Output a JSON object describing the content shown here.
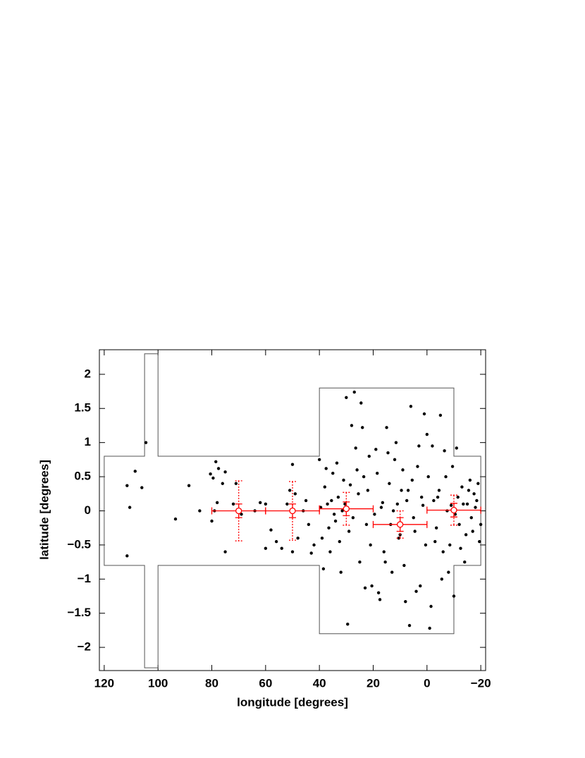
{
  "chart_data": {
    "type": "scatter",
    "xlabel": "longitude [degrees]",
    "ylabel": "latitude [degrees]",
    "xlim": [
      121.8,
      -21.8
    ],
    "ylim": [
      -2.34,
      2.36
    ],
    "xticks": [
      120,
      100,
      80,
      60,
      40,
      20,
      0,
      {
        "value": -20,
        "label": "−20"
      }
    ],
    "yticks": [
      2,
      1.5,
      1,
      0.5,
      0,
      {
        "value": -0.5,
        "label": "−0.5"
      },
      {
        "value": -1,
        "label": "−1"
      },
      {
        "value": -1.5,
        "label": "−1.5"
      },
      {
        "value": -2,
        "label": "−2"
      }
    ],
    "region": {
      "color": "#555555",
      "x": [
        120,
        105,
        105,
        100,
        100,
        40,
        40,
        -10,
        -10,
        -20,
        -20,
        -10,
        -10,
        40,
        40,
        100,
        100,
        105,
        105,
        120
      ],
      "y": [
        0.8,
        0.8,
        2.3,
        2.3,
        0.8,
        0.8,
        1.8,
        1.8,
        0.8,
        0.8,
        -0.8,
        -0.8,
        -1.8,
        -1.8,
        -0.8,
        -0.8,
        -2.3,
        -2.3,
        -0.8,
        -0.8
      ]
    },
    "points": {
      "color": "#000000",
      "x": [
        111.5,
        110.5,
        111.5,
        108.5,
        106,
        104.5,
        93.5,
        88.5,
        84.5,
        80.5,
        78.5,
        77.5,
        79.5,
        76,
        78,
        79,
        75,
        80,
        75,
        71,
        69,
        72,
        62,
        60,
        58,
        56,
        54,
        60,
        64,
        50,
        51,
        49,
        52,
        48,
        50,
        46,
        45,
        44,
        43,
        42,
        40,
        39,
        38,
        37,
        36,
        35,
        34,
        33,
        32,
        31,
        30,
        29,
        28,
        27,
        26,
        25,
        24,
        23,
        22,
        21,
        39.5,
        38.5,
        37.5,
        36.5,
        35.5,
        34.5,
        33.5,
        32.5,
        31.5,
        30.5,
        29.5,
        28.5,
        27.5,
        26.5,
        25.5,
        24.5,
        23.5,
        22.5,
        21.5,
        20.5,
        19,
        18,
        17,
        16,
        15,
        14,
        13,
        12,
        11,
        10,
        9,
        8,
        7,
        6,
        5,
        4,
        3,
        2,
        1,
        0.5,
        19.5,
        18.5,
        17.5,
        16.5,
        15.5,
        14.5,
        13.5,
        12.5,
        11.5,
        10.5,
        9.5,
        8.5,
        7.5,
        6.5,
        5.5,
        4.5,
        3.5,
        2.5,
        1.5,
        0,
        -1,
        -2,
        -3,
        -4,
        -5,
        -6,
        -7,
        -8,
        -9,
        -10,
        -11,
        -12,
        -13,
        -14,
        -15,
        -16,
        -17,
        -18,
        -19,
        -20,
        -0.5,
        -1.5,
        -2.5,
        -3.5,
        -4.5,
        -5.5,
        -6.5,
        -7.5,
        -8.5,
        -9.5,
        -10.5,
        -11.5,
        -12.5,
        -13.5,
        -14.5,
        -15.5,
        -16.5,
        -17.5,
        -18.5,
        -19.5
      ],
      "y": [
        0.37,
        0.05,
        -0.66,
        0.58,
        0.34,
        1.0,
        -0.12,
        0.37,
        0,
        0.54,
        0.72,
        0.62,
        0.48,
        0.4,
        0.12,
        0,
        -0.6,
        -0.15,
        0.57,
        0.4,
        -0.05,
        0.1,
        0.12,
        0.1,
        -0.28,
        -0.45,
        -0.55,
        -0.55,
        0,
        0.68,
        0.3,
        0.25,
        0.1,
        -0.4,
        -0.6,
        0,
        0.15,
        -0.2,
        -0.62,
        -0.5,
        0.75,
        -0.4,
        0.35,
        0.1,
        -0.6,
        0.55,
        -0.15,
        0.2,
        -0.9,
        0.45,
        1.66,
        -0.3,
        1.25,
        1.74,
        0.6,
        -0.75,
        1.22,
        -1.13,
        0.3,
        -0.5,
        0.05,
        -0.85,
        0.62,
        -0.25,
        0.15,
        -0.05,
        0.7,
        -0.45,
        0.0,
        0.1,
        -1.66,
        0.38,
        -0.1,
        0.92,
        0.25,
        1.58,
        0.5,
        -0.2,
        0.8,
        -1.1,
        0.9,
        -1.2,
        0.05,
        -0.6,
        1.22,
        0.4,
        -0.9,
        0.75,
        0.1,
        -0.35,
        0.6,
        -1.33,
        0.3,
        1.53,
        -0.1,
        -1.18,
        0.95,
        0.2,
        1.42,
        -0.5,
        -0.05,
        0.55,
        -1.3,
        0.12,
        -0.75,
        0.85,
        -0.2,
        0.0,
        1.0,
        -0.4,
        0.3,
        -0.8,
        0.15,
        -1.68,
        0.45,
        -0.3,
        0.65,
        -1.1,
        0.08,
        1.12,
        -1.72,
        0.95,
        -0.45,
        0.2,
        1.4,
        -0.6,
        0.5,
        -0.9,
        0.08,
        -1.25,
        0.92,
        -0.2,
        0.35,
        -0.75,
        0.1,
        0.45,
        -0.3,
        0.05,
        0.4,
        -0.2,
        0.5,
        -1.4,
        0.15,
        -0.25,
        0.3,
        -1.0,
        0.88,
        0.0,
        -0.5,
        0.65,
        -0.05,
        0.2,
        -0.55,
        0.1,
        -0.35,
        0.3,
        -0.1,
        0.25,
        0.15,
        -0.45
      ]
    },
    "binned": {
      "color": "#ff0000",
      "x": [
        70,
        50,
        30,
        10,
        -10
      ],
      "y": [
        0,
        0,
        0.03,
        -0.2,
        0.01
      ],
      "xerr": [
        10,
        10,
        10,
        10,
        10
      ],
      "yerr": [
        0.1,
        0.1,
        0.1,
        0.1,
        0.1
      ],
      "yerr_sys": [
        0.44,
        0.43,
        0.24,
        0.2,
        0.22
      ]
    }
  }
}
